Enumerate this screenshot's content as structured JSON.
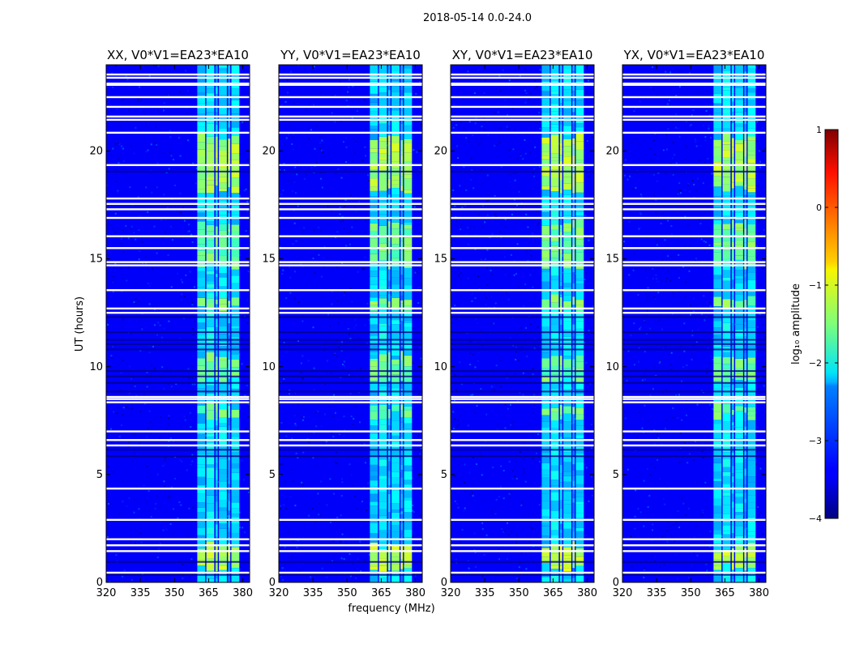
{
  "suptitle": "2018-05-14 0.0-24.0",
  "chart_data": {
    "type": "heatmap",
    "title": "2018-05-14 0.0-24.0",
    "xlabel": "frequency (MHz)",
    "ylabel": "UT (hours)",
    "xlim": [
      320,
      383
    ],
    "ylim": [
      0,
      24
    ],
    "xticks": [
      320,
      335,
      350,
      365,
      380
    ],
    "xtick_labels": [
      "320",
      "335",
      "350",
      "365",
      "380"
    ],
    "yticks": [
      0,
      5,
      10,
      15,
      20
    ],
    "ytick_labels": [
      "0",
      "5",
      "10",
      "15",
      "20"
    ],
    "panels": [
      {
        "title": "XX, V0*V1=EA23*EA10",
        "polarization": "XX"
      },
      {
        "title": "YY, V0*V1=EA23*EA10",
        "polarization": "YY"
      },
      {
        "title": "XY, V0*V1=EA23*EA10",
        "polarization": "XY"
      },
      {
        "title": "YX, V0*V1=EA23*EA10",
        "polarization": "YX"
      }
    ],
    "background_log10": -3.4,
    "rfi_channels_mhz": [
      {
        "from": 360.0,
        "to": 363.5,
        "level": -2.1
      },
      {
        "from": 364.0,
        "to": 367.5,
        "level": -1.9
      },
      {
        "from": 368.0,
        "to": 369.0,
        "level": -2.2
      },
      {
        "from": 369.5,
        "to": 373.0,
        "level": -2.0
      },
      {
        "from": 373.5,
        "to": 374.5,
        "level": -2.3
      },
      {
        "from": 375.0,
        "to": 378.5,
        "level": -2.0
      }
    ],
    "bright_periods_ut": [
      {
        "from": 0.5,
        "to": 1.5,
        "level": -1.2
      },
      {
        "from": 7.5,
        "to": 8.0,
        "level": -1.6
      },
      {
        "from": 9.2,
        "to": 10.3,
        "level": -1.6
      },
      {
        "from": 12.5,
        "to": 13.0,
        "level": -1.5
      },
      {
        "from": 14.5,
        "to": 16.5,
        "level": -1.6
      },
      {
        "from": 18.0,
        "to": 20.5,
        "level": -1.3
      }
    ],
    "flagged_ut": [
      0.45,
      1.45,
      1.72,
      2.0,
      2.9,
      4.35,
      6.35,
      6.6,
      7.0,
      8.35,
      8.5,
      8.6,
      12.5,
      12.7,
      13.55,
      14.7,
      14.85,
      15.5,
      16.05,
      16.9,
      17.3,
      17.55,
      17.8,
      19.35,
      20.85,
      21.45,
      21.6,
      22.05,
      22.5,
      23.4,
      23.55
    ],
    "dark_ut": [
      0.35,
      0.95,
      5.85,
      6.15,
      8.85,
      9.25,
      9.55,
      9.8,
      10.8,
      11.05,
      11.25,
      11.6,
      12.3,
      19.05
    ],
    "colorbar": {
      "label": "log₁₀ amplitude",
      "vmin": -4,
      "vmax": 1,
      "ticks": [
        1,
        0,
        -1,
        -2,
        -3,
        -4
      ],
      "tick_labels": [
        "1",
        "0",
        "−1",
        "−2",
        "−3",
        "−4"
      ],
      "colormap": "jet"
    }
  }
}
